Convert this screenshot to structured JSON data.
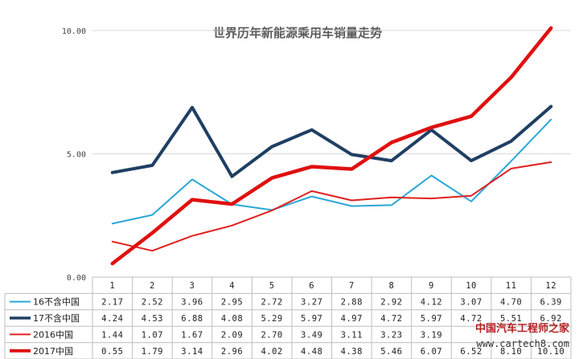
{
  "chart_data": {
    "type": "line",
    "title": "世界历年新能源乘用车销量走势",
    "categories": [
      "1",
      "2",
      "3",
      "4",
      "5",
      "6",
      "7",
      "8",
      "9",
      "10",
      "11",
      "12"
    ],
    "ylim": [
      0,
      10
    ],
    "yticks": [
      "0.00",
      "5.00",
      "10.00"
    ],
    "grid": true,
    "legend": "table-below",
    "series": [
      {
        "name": "16不含中国",
        "color": "#2aa7d8",
        "width": 2,
        "values": [
          2.17,
          2.52,
          3.96,
          2.95,
          2.72,
          3.27,
          2.88,
          2.92,
          4.12,
          3.07,
          4.7,
          6.39
        ],
        "labels": [
          "2.17",
          "2.52",
          "3.96",
          "2.95",
          "2.72",
          "3.27",
          "2.88",
          "2.92",
          "4.12",
          "3.07",
          "4.70",
          "6.39"
        ]
      },
      {
        "name": "17不含中国",
        "color": "#1f3f63",
        "width": 4,
        "values": [
          4.24,
          4.53,
          6.88,
          4.08,
          5.29,
          5.97,
          4.97,
          4.72,
          5.97,
          4.72,
          5.51,
          6.92
        ],
        "labels": [
          "4.24",
          "4.53",
          "6.88",
          "4.08",
          "5.29",
          "5.97",
          "4.97",
          "4.72",
          "5.97",
          "4.72",
          "5.51",
          "6.92"
        ]
      },
      {
        "name": "2016中国",
        "color": "#e02020",
        "width": 2,
        "values": [
          1.44,
          1.07,
          1.67,
          2.09,
          2.7,
          3.49,
          3.11,
          3.23,
          3.19,
          3.3,
          4.4,
          4.66
        ],
        "labels": [
          "1.44",
          "1.07",
          "1.67",
          "2.09",
          "2.70",
          "3.49",
          "3.11",
          "3.23",
          "3.19",
          "",
          "",
          ""
        ]
      },
      {
        "name": "2017中国",
        "color": "#e01010",
        "width": 4.5,
        "values": [
          0.55,
          1.79,
          3.14,
          2.96,
          4.02,
          4.48,
          4.38,
          5.46,
          6.07,
          6.52,
          8.1,
          10.1
        ],
        "labels": [
          "0.55",
          "1.79",
          "3.14",
          "2.96",
          "4.02",
          "4.48",
          "4.38",
          "5.46",
          "6.07",
          "6.52",
          "8.10",
          "10.10"
        ]
      }
    ]
  },
  "watermark": {
    "line1": "中国汽车工程师之家",
    "line2": "www.cartech8.com"
  }
}
